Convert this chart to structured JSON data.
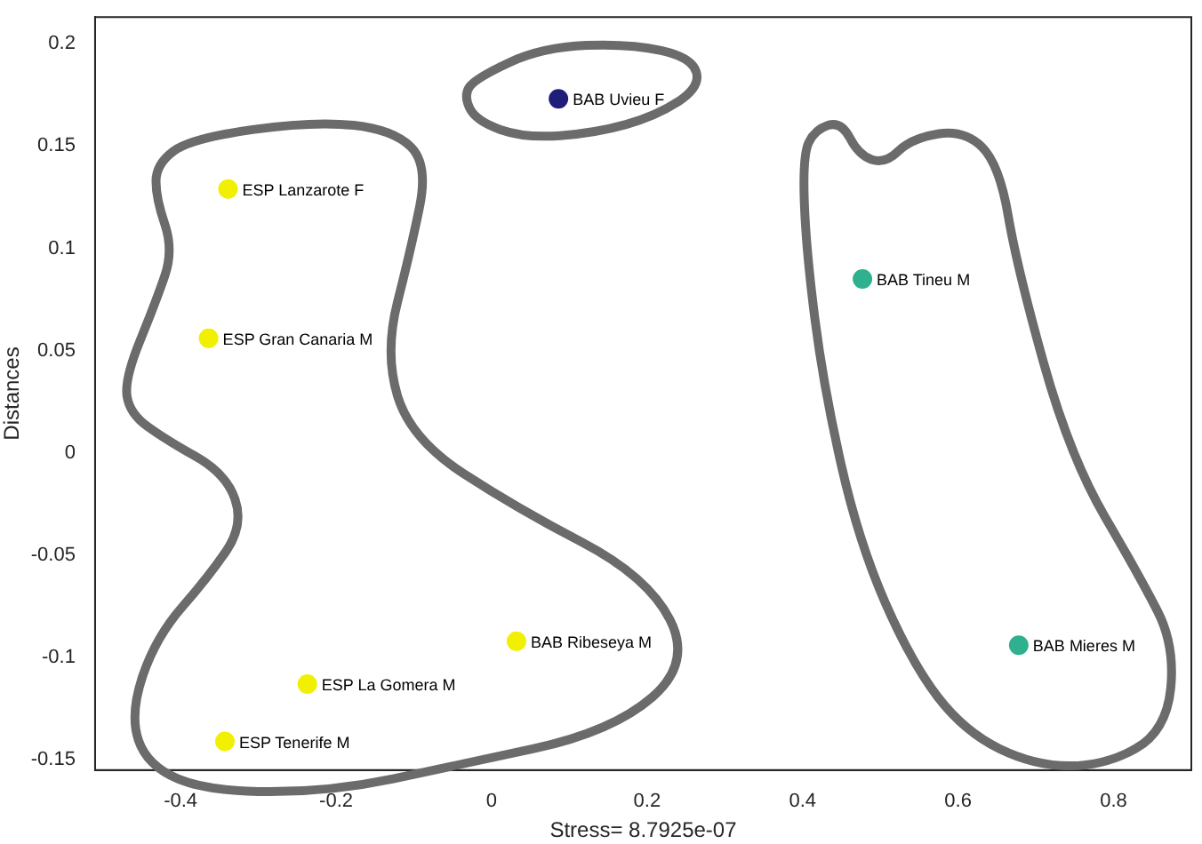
{
  "chart_data": {
    "type": "scatter",
    "xlabel": "Stress= 8.7925e-07",
    "ylabel": "Distances",
    "x": [
      0.086,
      0.477,
      0.678,
      0.032,
      -0.237,
      -0.343,
      -0.339,
      -0.364
    ],
    "values": [
      0.173,
      0.085,
      -0.094,
      -0.092,
      -0.113,
      -0.141,
      0.129,
      0.056
    ],
    "colors": [
      "#1f1f7a",
      "#2fb08f",
      "#2fb08f",
      "#f0f000",
      "#f0f000",
      "#f0f000",
      "#f0f000",
      "#f0f000"
    ],
    "marker": "circle",
    "grid": false,
    "legend": false,
    "xlim": [
      -0.51,
      0.9
    ],
    "ylim": [
      -0.155,
      0.213
    ],
    "xticks": [
      -0.4,
      -0.2,
      0,
      0.2,
      0.4,
      0.6,
      0.8
    ],
    "yticks": [
      -0.15,
      -0.1,
      -0.05,
      0,
      0.05,
      0.1,
      0.15,
      0.2
    ],
    "annotations": [
      {
        "text": "BAB Uvieu F",
        "x": 0.086,
        "y": 0.173
      },
      {
        "text": "BAB Tineu M",
        "x": 0.477,
        "y": 0.085
      },
      {
        "text": "BAB Mieres M",
        "x": 0.678,
        "y": -0.094
      },
      {
        "text": "BAB Ribeseya M",
        "x": 0.032,
        "y": -0.092
      },
      {
        "text": "ESP La Gomera M",
        "x": -0.237,
        "y": -0.113
      },
      {
        "text": "ESP Tenerife M",
        "x": -0.343,
        "y": -0.141
      },
      {
        "text": "ESP Lanzarote F",
        "x": -0.339,
        "y": 0.129
      },
      {
        "text": "ESP Gran Canaria M",
        "x": -0.364,
        "y": 0.056
      }
    ]
  }
}
